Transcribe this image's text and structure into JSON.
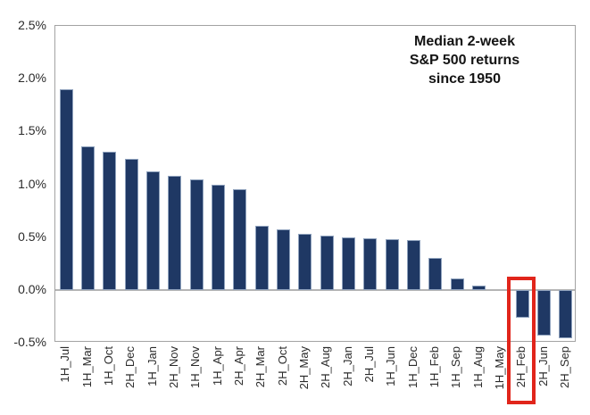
{
  "chart_data": {
    "type": "bar",
    "title": "Median 2-week S&P 500 returns since 1950",
    "title_lines": [
      "Median 2-week",
      "S&P 500 returns",
      "since 1950"
    ],
    "xlabel": "",
    "ylabel": "",
    "units": "%",
    "categories": [
      "1H_Jul",
      "1H_Mar",
      "1H_Oct",
      "2H_Dec",
      "1H_Jan",
      "2H_Nov",
      "1H_Nov",
      "1H_Apr",
      "2H_Apr",
      "2H_Mar",
      "2H_Oct",
      "2H_May",
      "2H_Aug",
      "2H_Jan",
      "2H_Jul",
      "1H_Jun",
      "1H_Dec",
      "1H_Feb",
      "1H_Sep",
      "1H_Aug",
      "1H_May",
      "2H_Feb",
      "2H_Jun",
      "2H_Sep"
    ],
    "values": [
      1.9,
      1.36,
      1.31,
      1.24,
      1.12,
      1.08,
      1.05,
      1.0,
      0.95,
      0.61,
      0.57,
      0.53,
      0.51,
      0.5,
      0.49,
      0.48,
      0.47,
      0.3,
      0.11,
      0.04,
      0.0,
      -0.26,
      -0.43,
      -0.46
    ],
    "ylim": [
      -0.5,
      2.5
    ],
    "ytick_values": [
      2.5,
      2.0,
      1.5,
      1.0,
      0.5,
      0.0,
      -0.5
    ],
    "ytick_labels": [
      "2.5%",
      "2.0%",
      "1.5%",
      "1.0%",
      "0.5%",
      "0.0%",
      "-0.5%"
    ],
    "grid": false,
    "legend": false,
    "bar_color": "#1f3864",
    "highlight": {
      "category": "2H_Feb",
      "box_color": "#e1251b"
    }
  }
}
